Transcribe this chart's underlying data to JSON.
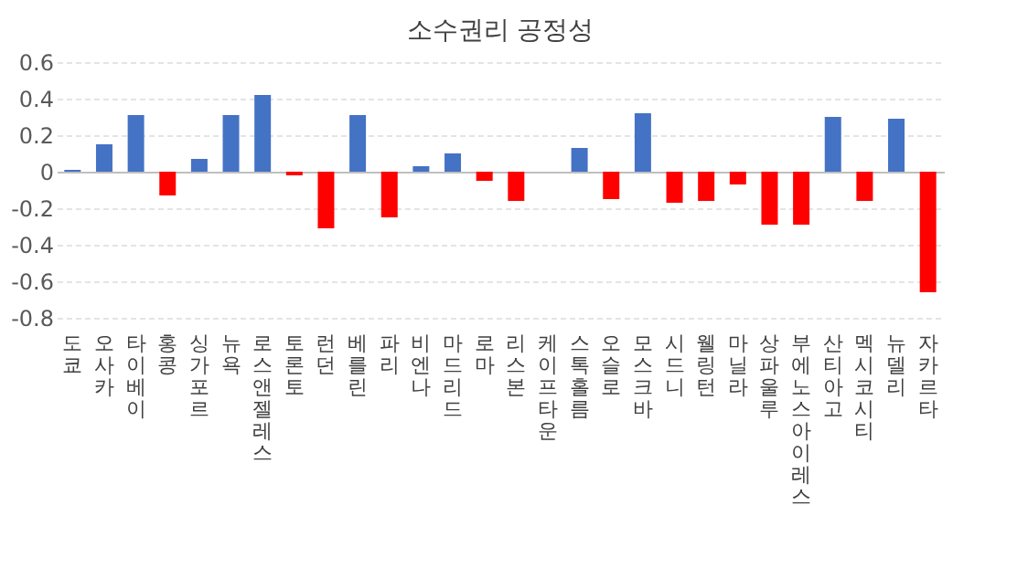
{
  "chart_data": {
    "type": "bar",
    "title": "소수권리 공정성",
    "categories": [
      "도쿄",
      "오사카",
      "타이베이",
      "홍콩",
      "싱가포르",
      "뉴욕",
      "로스 앤젤레스",
      "토론토",
      "런던",
      "베를린",
      "파리",
      "비엔나",
      "마드리드",
      "로마",
      "리스본",
      "케이프 타운",
      "스톡홀름",
      "오슬로",
      "모스크바",
      "시드니",
      "웰링턴",
      "마닐라",
      "상파울루",
      "부에노스 아이레스",
      "산티아고",
      "멕시코 시티",
      "뉴 델리",
      "자카르타"
    ],
    "values": [
      0.01,
      0.15,
      0.31,
      -0.13,
      0.07,
      0.31,
      0.42,
      -0.02,
      -0.31,
      0.31,
      -0.25,
      0.03,
      0.1,
      -0.05,
      -0.16,
      0,
      0.13,
      -0.15,
      0.32,
      -0.17,
      -0.16,
      -0.07,
      -0.29,
      -0.29,
      0.3,
      -0.16,
      0.29,
      -0.66
    ],
    "colors": [
      "#4472c4",
      "#4472c4",
      "#4472c4",
      "#ff0000",
      "#4472c4",
      "#4472c4",
      "#4472c4",
      "#ff0000",
      "#ff0000",
      "#4472c4",
      "#ff0000",
      "#4472c4",
      "#4472c4",
      "#ff0000",
      "#ff0000",
      "#4472c4",
      "#4472c4",
      "#ff0000",
      "#4472c4",
      "#ff0000",
      "#ff0000",
      "#ff0000",
      "#ff0000",
      "#ff0000",
      "#4472c4",
      "#ff0000",
      "#4472c4",
      "#ff0000"
    ],
    "ylim": [
      -0.8,
      0.6
    ],
    "yticks": [
      -0.8,
      -0.6,
      -0.4,
      -0.2,
      0,
      0.2,
      0.4,
      0.6
    ],
    "grid": "y"
  }
}
